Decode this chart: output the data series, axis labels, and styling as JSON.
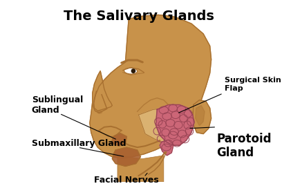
{
  "title": "The Salivary Glands",
  "title_fontsize": 14,
  "title_fontweight": "bold",
  "background_color": "#ffffff",
  "skin_color": "#C8924A",
  "skin_dark": "#A87030",
  "skin_light": "#DEB878",
  "parotid_color": "#CC6677",
  "parotid_edge": "#994455",
  "sublingual_color": "#A86030",
  "submaxillary_color": "#A86030",
  "nerve_color": "#C8924A",
  "line_color": "#000000",
  "labels": {
    "sublingual": "Sublingual\nGland",
    "submaxillary": "Submaxillary Gland",
    "parotid": "Parotoid\nGland",
    "surgical": "Surgical Skin\nFlap",
    "facial": "Facial Nerves"
  },
  "label_fontsize": 9,
  "parotid_fontsize": 12,
  "label_fontweight": "bold"
}
